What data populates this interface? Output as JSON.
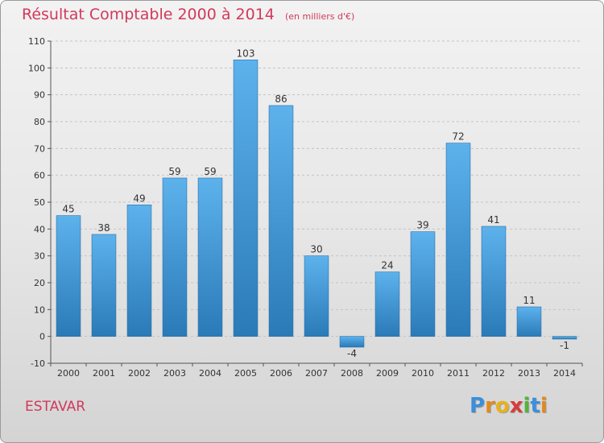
{
  "title": "Résultat Comptable 2000 à 2014",
  "subtitle": "(en milliers d'€)",
  "commune": "ESTAVAR",
  "brand": {
    "letters": [
      "P",
      "r",
      "o",
      "x",
      "i",
      "t",
      "i"
    ],
    "colors": [
      "#3b8fd9",
      "#e08a1e",
      "#e8b21c",
      "#d93a3a",
      "#55b33b",
      "#3b8fd9",
      "#e08a1e"
    ]
  },
  "colors": {
    "bar_top": "#5db2ec",
    "bar_bottom": "#2a7ab8",
    "text": "#d1395b"
  },
  "chart_data": {
    "type": "bar",
    "categories": [
      "2000",
      "2001",
      "2002",
      "2003",
      "2004",
      "2005",
      "2006",
      "2007",
      "2008",
      "2009",
      "2010",
      "2011",
      "2012",
      "2013",
      "2014"
    ],
    "values": [
      45,
      38,
      49,
      59,
      59,
      103,
      86,
      30,
      -4,
      24,
      39,
      72,
      41,
      11,
      -1
    ],
    "ylim": [
      -10,
      110
    ],
    "yticks": [
      -10,
      0,
      10,
      20,
      30,
      40,
      50,
      60,
      70,
      80,
      90,
      100,
      110
    ],
    "grid": true,
    "legend": "none"
  }
}
